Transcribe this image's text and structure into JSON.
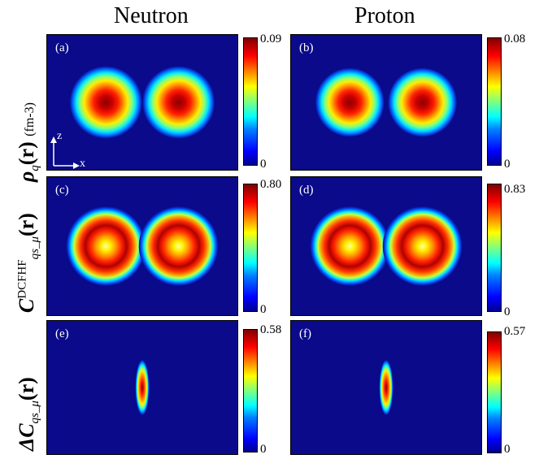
{
  "column_titles": [
    "Neutron",
    "Proton"
  ],
  "row_labels": [
    {
      "symbol": "ρ",
      "sub": "q",
      "arg": "(r)",
      "unit": "(fm-3)"
    },
    {
      "symbol": "C",
      "sup": "DCFHF",
      "sub": "qs_μ",
      "arg": "(r)"
    },
    {
      "symbol": "ΔC",
      "sub": "qs_μ",
      "arg": "(r)"
    }
  ],
  "axes_indicator": {
    "vertical": "z",
    "horizontal": "x"
  },
  "colors": {
    "background": "#0a0a8a",
    "colormap": "jet"
  },
  "chart_data": {
    "type": "heatmap",
    "title": "",
    "colormap": "jet",
    "panels": [
      {
        "label": "(a)",
        "quantity": "Neutron density",
        "cbar_min": "0",
        "cbar_max": "0.09",
        "features": [
          {
            "x": -0.42,
            "z": 0,
            "peak": 0.09,
            "radius": 0.42,
            "shape": "blob"
          },
          {
            "x": 0.42,
            "z": 0,
            "peak": 0.09,
            "radius": 0.42,
            "shape": "blob"
          }
        ]
      },
      {
        "label": "(b)",
        "quantity": "Proton density",
        "cbar_min": "0",
        "cbar_max": "0.08",
        "features": [
          {
            "x": -0.42,
            "z": 0,
            "peak": 0.08,
            "radius": 0.4,
            "shape": "blob"
          },
          {
            "x": 0.42,
            "z": 0,
            "peak": 0.08,
            "radius": 0.4,
            "shape": "blob"
          }
        ]
      },
      {
        "label": "(c)",
        "quantity": "Neutron localization DCFHF",
        "cbar_min": "0",
        "cbar_max": "0.80",
        "features": [
          {
            "x": -0.42,
            "z": 0,
            "peak": 0.8,
            "radius": 0.46,
            "shape": "ring"
          },
          {
            "x": 0.42,
            "z": 0,
            "peak": 0.8,
            "radius": 0.46,
            "shape": "ring"
          }
        ]
      },
      {
        "label": "(d)",
        "quantity": "Proton localization DCFHF",
        "cbar_min": "0",
        "cbar_max": "0.83",
        "features": [
          {
            "x": -0.42,
            "z": 0,
            "peak": 0.83,
            "radius": 0.46,
            "shape": "ring"
          },
          {
            "x": 0.42,
            "z": 0,
            "peak": 0.83,
            "radius": 0.46,
            "shape": "ring"
          }
        ]
      },
      {
        "label": "(e)",
        "quantity": "Neutron ΔC",
        "cbar_min": "0",
        "cbar_max": "0.58",
        "features": [
          {
            "x": 0,
            "z": 0,
            "peak": 0.58,
            "radius_x": 0.08,
            "radius_z": 0.32,
            "shape": "ellipse"
          }
        ]
      },
      {
        "label": "(f)",
        "quantity": "Proton ΔC",
        "cbar_min": "0",
        "cbar_max": "0.57",
        "features": [
          {
            "x": 0,
            "z": 0,
            "peak": 0.57,
            "radius_x": 0.08,
            "radius_z": 0.32,
            "shape": "ellipse"
          }
        ]
      }
    ]
  }
}
